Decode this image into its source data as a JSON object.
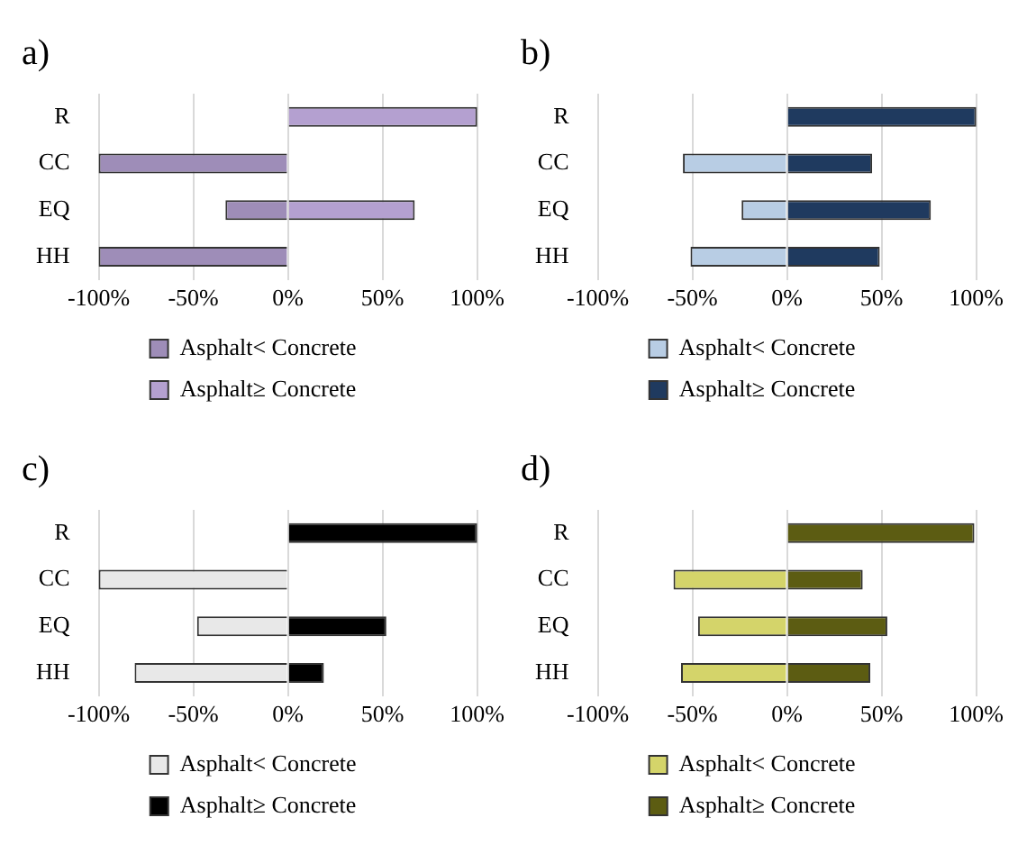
{
  "chart_data": [
    {
      "type": "bar",
      "title": "a)",
      "orientation": "horizontal",
      "stacked": true,
      "categories": [
        "R",
        "CC",
        "EQ",
        "HH"
      ],
      "xlim": [
        -100,
        100
      ],
      "xticks": [
        {
          "value": -100,
          "label": "-100%"
        },
        {
          "value": -50,
          "label": "-50%"
        },
        {
          "value": 0,
          "label": "0%"
        },
        {
          "value": 50,
          "label": "50%"
        },
        {
          "value": 100,
          "label": "100%"
        }
      ],
      "grid": "x",
      "legend": "bottom",
      "series": [
        {
          "name": "Asphalt< Concrete",
          "color": "#9e8db8",
          "values": [
            0,
            -100,
            -33,
            -100
          ]
        },
        {
          "name": "Asphalt≥ Concrete",
          "color": "#b4a0d0",
          "values": [
            100,
            0,
            67,
            0
          ]
        }
      ]
    },
    {
      "type": "bar",
      "title": "b)",
      "orientation": "horizontal",
      "stacked": true,
      "categories": [
        "R",
        "CC",
        "EQ",
        "HH"
      ],
      "xlim": [
        -100,
        100
      ],
      "xticks": [
        {
          "value": -100,
          "label": "-100%"
        },
        {
          "value": -50,
          "label": "-50%"
        },
        {
          "value": 0,
          "label": "0%"
        },
        {
          "value": 50,
          "label": "50%"
        },
        {
          "value": 100,
          "label": "100%"
        }
      ],
      "grid": "x",
      "legend": "bottom",
      "series": [
        {
          "name": "Asphalt< Concrete",
          "color": "#b8cde4",
          "values": [
            0,
            -55,
            -24,
            -51
          ]
        },
        {
          "name": "Asphalt≥ Concrete",
          "color": "#1f3a5f",
          "values": [
            100,
            45,
            76,
            49
          ]
        }
      ]
    },
    {
      "type": "bar",
      "title": "c)",
      "orientation": "horizontal",
      "stacked": true,
      "categories": [
        "R",
        "CC",
        "EQ",
        "HH"
      ],
      "xlim": [
        -100,
        100
      ],
      "xticks": [
        {
          "value": -100,
          "label": "-100%"
        },
        {
          "value": -50,
          "label": "-50%"
        },
        {
          "value": 0,
          "label": "0%"
        },
        {
          "value": 50,
          "label": "50%"
        },
        {
          "value": 100,
          "label": "100%"
        }
      ],
      "grid": "x",
      "legend": "bottom",
      "series": [
        {
          "name": "Asphalt< Concrete",
          "color": "#e8e8e8",
          "values": [
            0,
            -100,
            -48,
            -81
          ]
        },
        {
          "name": "Asphalt≥ Concrete",
          "color": "#000000",
          "values": [
            100,
            0,
            52,
            19
          ]
        }
      ]
    },
    {
      "type": "bar",
      "title": "d)",
      "orientation": "horizontal",
      "stacked": true,
      "categories": [
        "R",
        "CC",
        "EQ",
        "HH"
      ],
      "xlim": [
        -100,
        100
      ],
      "xticks": [
        {
          "value": -100,
          "label": "-100%"
        },
        {
          "value": -50,
          "label": "-50%"
        },
        {
          "value": 0,
          "label": "0%"
        },
        {
          "value": 50,
          "label": "50%"
        },
        {
          "value": 100,
          "label": "100%"
        }
      ],
      "grid": "x",
      "legend": "bottom",
      "series": [
        {
          "name": "Asphalt< Concrete",
          "color": "#d4d46a",
          "values": [
            null,
            -60,
            -47,
            -56
          ]
        },
        {
          "name": "Asphalt≥ Concrete",
          "color": "#5c5c12",
          "values": [
            99,
            40,
            53,
            44
          ]
        }
      ]
    }
  ]
}
